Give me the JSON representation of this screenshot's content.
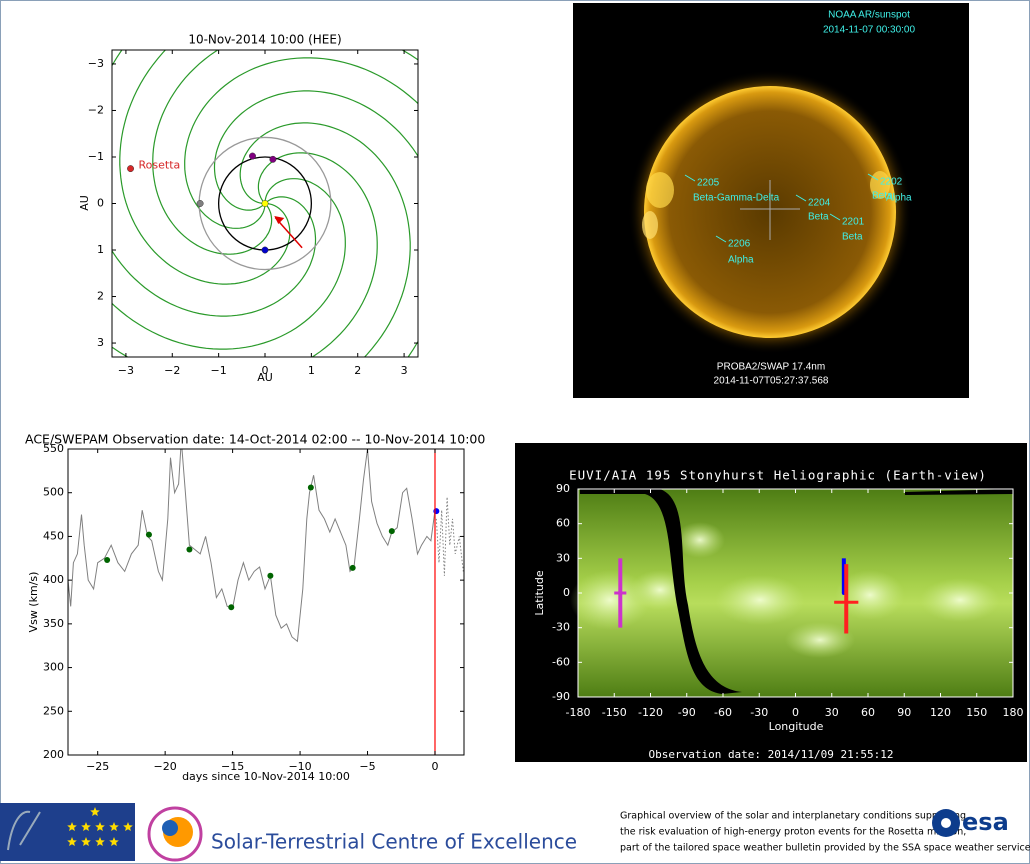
{
  "chart_data": [
    {
      "type": "scatter",
      "title": "10-Nov-2014 10:00 (HEE)",
      "xlabel": "AU",
      "ylabel": "AU",
      "xlim": [
        -3.3,
        3.3
      ],
      "ylim": [
        3.3,
        -3.3
      ],
      "xticks": [
        {
          "value": -3,
          "label": "−3"
        },
        {
          "value": -2,
          "label": "−2"
        },
        {
          "value": -1,
          "label": "−1"
        },
        0,
        1,
        2,
        3
      ],
      "yticks": [
        {
          "value": -3,
          "label": "−3"
        },
        {
          "value": -2,
          "label": "−2"
        },
        {
          "value": -1,
          "label": "−1"
        },
        0,
        1,
        2,
        3
      ],
      "series": [
        {
          "name": "Rosetta",
          "color": "#d62728",
          "x": [
            -2.9
          ],
          "values": [
            -0.75
          ]
        },
        {
          "color": "#808080",
          "x": [
            -1.4
          ],
          "values": [
            0
          ]
        },
        {
          "color": "#800080",
          "x": [
            -0.27,
            0.17
          ],
          "values": [
            -1.02,
            -0.95
          ]
        },
        {
          "color": "#ffff00",
          "x": [
            0
          ],
          "values": [
            0
          ]
        },
        {
          "color": "#0000cc",
          "x": [
            0
          ],
          "values": [
            1
          ]
        }
      ]
    },
    {
      "type": "line",
      "title": "ACE/SWEPAM   Observation date: 14-Oct-2014 02:00 -- 10-Nov-2014 10:00",
      "xlabel": "days since 10-Nov-2014 10:00",
      "ylabel": "Vsw (km/s)",
      "xlim": [
        -27.2,
        2.15
      ],
      "ylim": [
        200,
        550
      ],
      "xticks": [
        {
          "value": -25,
          "label": "−25"
        },
        {
          "value": -20,
          "label": "−20"
        },
        {
          "value": -15,
          "label": "−15"
        },
        {
          "value": -10,
          "label": "−10"
        },
        {
          "value": -5,
          "label": "−5"
        },
        0
      ],
      "yticks": [
        200,
        250,
        300,
        350,
        400,
        450,
        500,
        550
      ],
      "series": [
        {
          "color": "#808080",
          "style": "solid",
          "x": [
            -27.2,
            -27,
            -26.8,
            -26.5,
            -26.2,
            -26,
            -25.7,
            -25.3,
            -25,
            -24.5,
            -24,
            -23.5,
            -23,
            -22.5,
            -22,
            -21.7,
            -21.3,
            -21,
            -20.5,
            -20.2,
            -19.8,
            -19.6,
            -19.3,
            -19,
            -18.8,
            -18.5,
            -18.2,
            -17.8,
            -17.4,
            -17,
            -16.6,
            -16.2,
            -15.8,
            -15.4,
            -15,
            -14.6,
            -14.2,
            -13.8,
            -13.4,
            -13,
            -12.6,
            -12.2,
            -11.8,
            -11.4,
            -11,
            -10.6,
            -10.2,
            -9.8,
            -9.5,
            -9.3,
            -9,
            -8.6,
            -8.2,
            -7.8,
            -7.4,
            -7,
            -6.6,
            -6.3,
            -6,
            -5.6,
            -5.3,
            -5,
            -4.7,
            -4.3,
            -3.9,
            -3.5,
            -3.2,
            -2.8,
            -2.4,
            -2.1,
            -1.7,
            -1.3,
            -1,
            -0.6,
            -0.3,
            0
          ],
          "values": [
            400,
            370,
            420,
            430,
            475,
            440,
            400,
            390,
            420,
            425,
            440,
            420,
            410,
            430,
            440,
            480,
            450,
            445,
            410,
            400,
            470,
            540,
            500,
            510,
            560,
            500,
            440,
            435,
            430,
            450,
            420,
            380,
            390,
            370,
            368,
            400,
            420,
            400,
            410,
            415,
            390,
            405,
            360,
            345,
            350,
            335,
            330,
            390,
            470,
            500,
            520,
            480,
            470,
            455,
            470,
            455,
            440,
            410,
            415,
            470,
            515,
            550,
            490,
            465,
            450,
            440,
            455,
            460,
            500,
            505,
            470,
            430,
            440,
            450,
            445,
            480
          ]
        },
        {
          "color": "#808080",
          "style": "dotted",
          "x": [
            0.1,
            0.3,
            0.5,
            0.7,
            0.9,
            1.1,
            1.3,
            1.5,
            1.8,
            2.1
          ],
          "values": [
            470,
            420,
            480,
            405,
            495,
            440,
            470,
            430,
            450,
            410
          ]
        },
        {
          "color": "#006400",
          "style": "markers",
          "x": [
            -24.3,
            -21.2,
            -18.2,
            -15.1,
            -12.2,
            -9.2,
            -6.1,
            -3.2
          ],
          "values": [
            423,
            452,
            435,
            369,
            405,
            506,
            414,
            456
          ]
        },
        {
          "color": "#0000ff",
          "style": "markers",
          "x": [
            0.1
          ],
          "values": [
            479
          ]
        }
      ],
      "vline": {
        "x": 0,
        "color": "#ff0000"
      }
    },
    {
      "type": "map",
      "title": "EUVI/AIA 195 Stonyhurst Heliographic (Earth-view)",
      "xlabel": "Longitude",
      "ylabel": "Latitude",
      "footnote": "Observation date: 2014/11/09 21:55:12",
      "xlim": [
        -180,
        180
      ],
      "ylim": [
        -90,
        90
      ],
      "xticks": [
        -180,
        -150,
        -120,
        -90,
        -60,
        -30,
        0,
        30,
        60,
        90,
        120,
        150,
        180
      ],
      "yticks": [
        -90,
        -60,
        -30,
        0,
        30,
        60,
        90
      ],
      "markers": [
        {
          "color": "#cc33cc",
          "x": -145,
          "y": 0,
          "ylow": -30,
          "yhigh": 30,
          "xlow": -150,
          "xhigh": -140
        },
        {
          "color": "#0000ff",
          "x": 40,
          "y": 0,
          "ylow": 0,
          "yhigh": 30
        },
        {
          "color": "#ff2020",
          "x": 42,
          "y": -8,
          "ylow": -35,
          "yhigh": 25,
          "xlow": 32,
          "xhigh": 52
        }
      ]
    }
  ],
  "solar_image": {
    "header": [
      "NOAA AR/sunspot",
      "2014-11-07 00:30:00"
    ],
    "footer": [
      "PROBA2/SWAP 17.4nm",
      "2014-11-07T05:27:37.568"
    ],
    "regions": [
      {
        "number": "2205",
        "class": "Beta-Gamma-Delta"
      },
      {
        "number": "2204",
        "class": "Beta"
      },
      {
        "number": "2201",
        "class": "Beta"
      },
      {
        "number": "2206",
        "class": "Alpha"
      },
      {
        "number": "2202",
        "class": "Beta"
      }
    ],
    "extra_class": "Alpha"
  },
  "footer": {
    "centre": "Solar-Terrestrial Centre of Excellence",
    "description": [
      "Graphical overview of the solar and interplanetary conditions supporting",
      "the risk evaluation of high-energy proton events for the Rosetta mission,",
      "part of the tailored space weather bulletin provided by the SSA space weather service network."
    ],
    "agency": "esa"
  }
}
